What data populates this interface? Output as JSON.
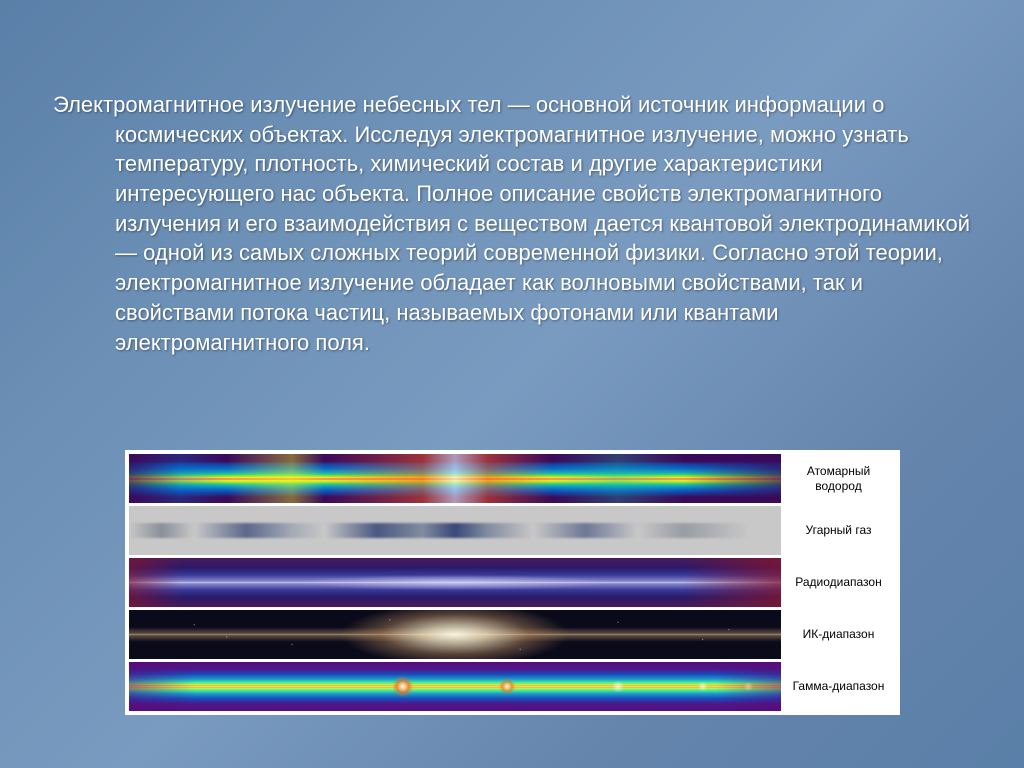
{
  "slide": {
    "paragraph": "Электромагнитное излучение небесных тел — основной источник информации о космических объектах. Исследуя электромагнитное излучение, можно узнать температуру, плотность, химический состав и другие характеристики интересующего нас объекта. Полное описание свойств электромагнитного излучения и его взаимодействия с веществом дается квантовой электродинамикой — одной из самых сложных теорий современной физики. Согласно этой теории, электромагнитное излучение обладает как волновыми свойствами, так и свойствами потока частиц, называемых фотонами или квантами электромагнитного поля.",
    "text_color": "#ffffff",
    "text_fontsize": 22,
    "background_gradient": [
      "#5a7fa8",
      "#6b8fb5",
      "#7a9bc0",
      "#6585ad",
      "#5a7fa8"
    ]
  },
  "spectrum": {
    "container_bg": "#ffffff",
    "label_color": "#000000",
    "label_fontsize": 12,
    "bands": [
      {
        "id": "atomic-hydrogen",
        "label": "Атомарный водород",
        "type": "thermal-map",
        "gradient_colors": [
          "#3a0a5a",
          "#1a3a9a",
          "#0a6aca",
          "#1abaaa",
          "#7aea3a",
          "#fafa1a",
          "#fa5a1a",
          "#fafafa"
        ]
      },
      {
        "id": "carbon-monoxide",
        "label": "Угарный газ",
        "type": "gray-wisps",
        "background": "#c8c8c8",
        "wisp_color": "#143264"
      },
      {
        "id": "radio",
        "label": "Радиодиапазон",
        "type": "dark-band",
        "gradient_colors": [
          "#4a1a5a",
          "#2a1a6a",
          "#3a3a9a",
          "#8a8aca",
          "#cacafa"
        ],
        "edge_tint": "#8c1428"
      },
      {
        "id": "infrared",
        "label": "ИК-диапазон",
        "type": "galactic-plane",
        "background": "#0a0a1a",
        "glow_color": "#fffae6",
        "dust_color": "#b48c64"
      },
      {
        "id": "gamma",
        "label": "Гамма-диапазон",
        "type": "thermal-map",
        "gradient_colors": [
          "#5a0a7a",
          "#4a1a8a",
          "#1a4aba",
          "#1a9aca",
          "#4aea9a",
          "#cafa3a",
          "#fa9a1a",
          "#fafafa"
        ]
      }
    ]
  }
}
